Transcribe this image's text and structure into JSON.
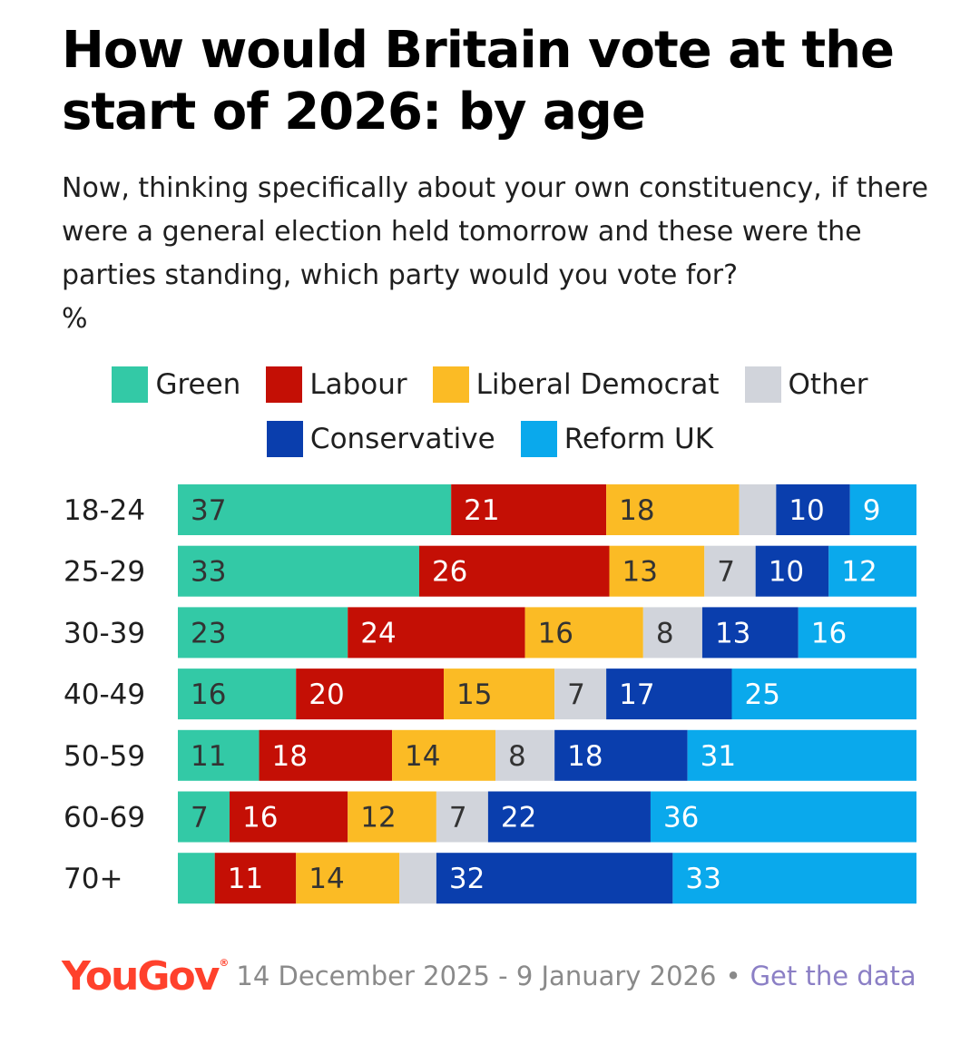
{
  "title": "How would Britain vote at the start of 2026: by age",
  "subtitle": "Now, thinking specifically about your own constituency, if there were a general election held tomorrow and these were the parties standing, which party would you vote for?",
  "unit": "%",
  "footer": {
    "logo": "YouGov",
    "logo_mark": "®",
    "dates": "14 December 2025 - 9 January 2026",
    "separator": "•",
    "link": "Get the data"
  },
  "chart_data": {
    "type": "bar",
    "orientation": "horizontal",
    "stacked": true,
    "title": "How would Britain vote at the start of 2026: by age",
    "unit": "%",
    "legend_position": "top-center",
    "categories": [
      "18-24",
      "25-29",
      "30-39",
      "40-49",
      "50-59",
      "60-69",
      "70+"
    ],
    "series": [
      {
        "name": "Green",
        "color": "#33c9a6",
        "values": [
          37,
          33,
          23,
          16,
          11,
          7,
          5
        ],
        "labels": [
          "37",
          "33",
          "23",
          "16",
          "11",
          "7",
          ""
        ]
      },
      {
        "name": "Labour",
        "color": "#c40f05",
        "values": [
          21,
          26,
          24,
          20,
          18,
          16,
          11
        ],
        "labels": [
          "21",
          "26",
          "24",
          "20",
          "18",
          "16",
          "11"
        ]
      },
      {
        "name": "Liberal Democrat",
        "color": "#fbbb25",
        "values": [
          18,
          13,
          16,
          15,
          14,
          12,
          14
        ],
        "labels": [
          "18",
          "13",
          "16",
          "15",
          "14",
          "12",
          "14"
        ]
      },
      {
        "name": "Other",
        "color": "#d1d4db",
        "values": [
          5,
          7,
          8,
          7,
          8,
          7,
          5
        ],
        "labels": [
          "",
          "7",
          "8",
          "7",
          "8",
          "7",
          ""
        ]
      },
      {
        "name": "Conservative",
        "color": "#0a3ead",
        "values": [
          10,
          10,
          13,
          17,
          18,
          22,
          32
        ],
        "labels": [
          "10",
          "10",
          "13",
          "17",
          "18",
          "22",
          "32"
        ]
      },
      {
        "name": "Reform UK",
        "color": "#0aa9ec",
        "values": [
          9,
          12,
          16,
          25,
          31,
          36,
          33
        ],
        "labels": [
          "9",
          "12",
          "16",
          "25",
          "31",
          "36",
          "33"
        ]
      }
    ]
  }
}
